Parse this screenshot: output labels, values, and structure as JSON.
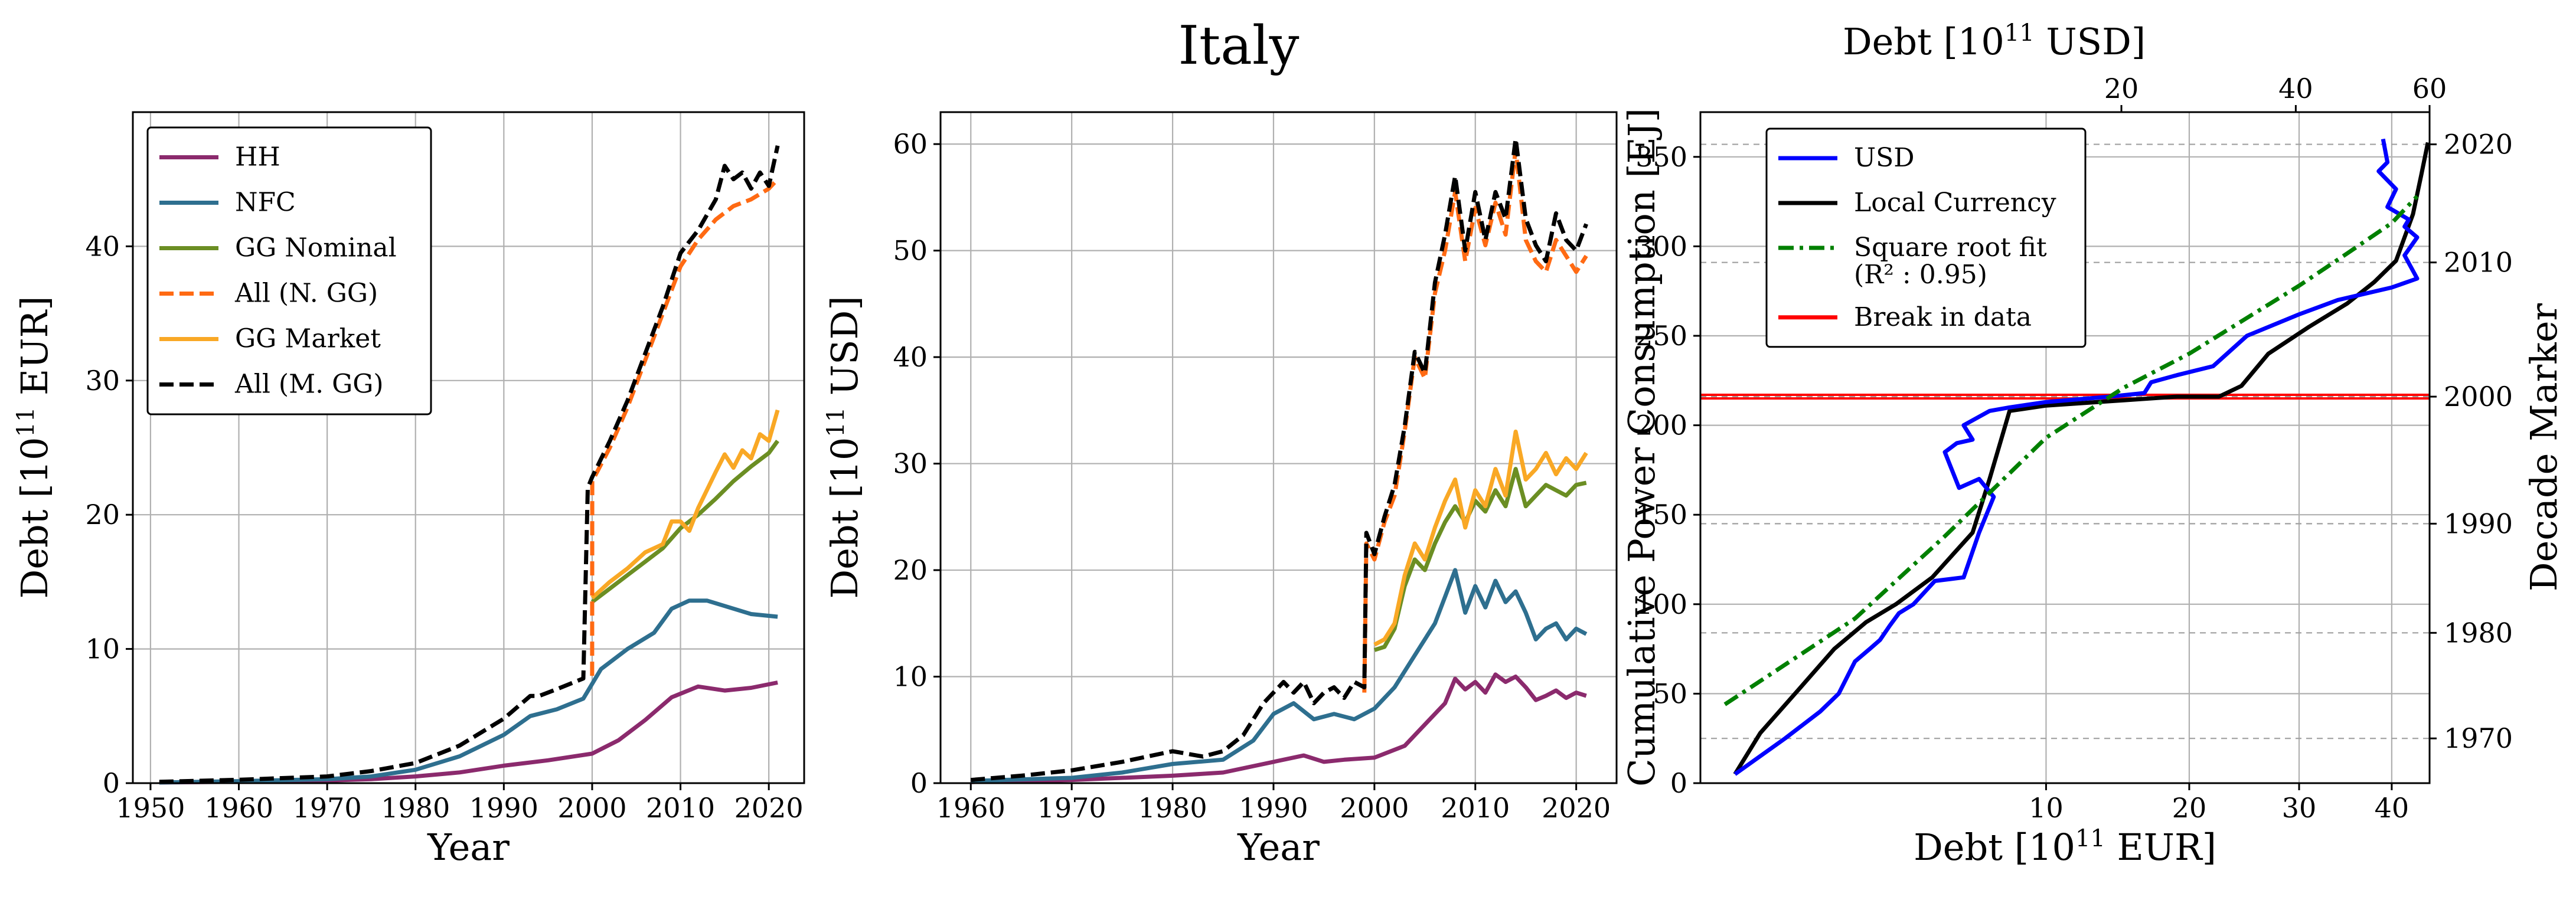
{
  "figure": {
    "suptitle": "Italy"
  },
  "colors": {
    "HH": "#8b2a6d",
    "NFC": "#2e6f8f",
    "GG_nominal": "#6b8e23",
    "all_n_gg": "#ff6a13",
    "GG_market": "#f9a825",
    "all_m_gg": "#000000",
    "usd": "#0000ff",
    "local": "#000000",
    "fit": "#008000",
    "break": "#ff0000"
  },
  "chart_data": [
    {
      "id": "left",
      "type": "line",
      "xlabel": "Year",
      "ylabel": "Debt [10",
      "ylabel_sup": "11",
      "ylabel_tail": " EUR]",
      "xlim": [
        1948,
        2024
      ],
      "ylim": [
        0,
        50
      ],
      "xticks": [
        1950,
        1960,
        1970,
        1980,
        1990,
        2000,
        2010,
        2020
      ],
      "yticks": [
        0,
        10,
        20,
        30,
        40
      ],
      "legend_position": "top-left",
      "legend": [
        {
          "label": "HH",
          "key": "HH",
          "dash": "solid"
        },
        {
          "label": "NFC",
          "key": "NFC",
          "dash": "solid"
        },
        {
          "label": "GG Nominal",
          "key": "GG_nominal",
          "dash": "solid"
        },
        {
          "label": "All (N. GG)",
          "key": "all_n_gg",
          "dash": "dashed"
        },
        {
          "label": "GG Market",
          "key": "GG_market",
          "dash": "solid"
        },
        {
          "label": "All (M. GG)",
          "key": "all_m_gg",
          "dash": "dashed"
        }
      ],
      "series": [
        {
          "name": "HH",
          "key": "HH",
          "dash": "solid",
          "x": [
            1951,
            1960,
            1970,
            1975,
            1980,
            1985,
            1990,
            1995,
            2000,
            2003,
            2006,
            2009,
            2012,
            2015,
            2018,
            2021
          ],
          "y": [
            0.05,
            0.1,
            0.2,
            0.3,
            0.5,
            0.8,
            1.3,
            1.7,
            2.2,
            3.2,
            4.7,
            6.4,
            7.2,
            6.9,
            7.1,
            7.5
          ]
        },
        {
          "name": "NFC",
          "key": "NFC",
          "dash": "solid",
          "x": [
            1951,
            1960,
            1970,
            1975,
            1980,
            1985,
            1990,
            1993,
            1996,
            1999,
            2001,
            2004,
            2007,
            2009,
            2011,
            2013,
            2015,
            2018,
            2021
          ],
          "y": [
            0.05,
            0.15,
            0.3,
            0.5,
            1.0,
            2.0,
            3.6,
            5.0,
            5.5,
            6.3,
            8.5,
            10.0,
            11.2,
            13.0,
            13.6,
            13.6,
            13.2,
            12.6,
            12.4
          ]
        },
        {
          "name": "GG Nominal",
          "key": "GG_nominal",
          "dash": "solid",
          "x": [
            2000,
            2002,
            2004,
            2006,
            2008,
            2010,
            2012,
            2014,
            2016,
            2018,
            2020,
            2021
          ],
          "y": [
            13.5,
            14.5,
            15.5,
            16.5,
            17.5,
            19.0,
            20.0,
            21.2,
            22.5,
            23.6,
            24.6,
            25.5
          ]
        },
        {
          "name": "GG Market",
          "key": "GG_market",
          "dash": "solid",
          "x": [
            2000,
            2002,
            2004,
            2006,
            2008,
            2009,
            2010,
            2011,
            2012,
            2014,
            2015,
            2016,
            2017,
            2018,
            2019,
            2020,
            2021
          ],
          "y": [
            13.8,
            15.0,
            16.0,
            17.2,
            17.8,
            19.5,
            19.5,
            18.8,
            20.5,
            23.2,
            24.5,
            23.5,
            24.8,
            24.2,
            26.0,
            25.5,
            27.8
          ]
        },
        {
          "name": "All (N. GG)",
          "key": "all_n_gg",
          "dash": "dashed",
          "x": [
            2000,
            2000.01,
            2002,
            2004,
            2006,
            2008,
            2010,
            2012,
            2014,
            2016,
            2018,
            2020,
            2021
          ],
          "y": [
            8.0,
            22.5,
            25.0,
            28.0,
            31.5,
            35.0,
            38.5,
            40.5,
            42.0,
            43.0,
            43.5,
            44.3,
            45.0
          ]
        },
        {
          "name": "All (M. GG)",
          "key": "all_m_gg",
          "dash": "dashed",
          "x": [
            1951,
            1960,
            1970,
            1975,
            1980,
            1985,
            1990,
            1993,
            1994,
            1996,
            1999,
            1999.5,
            2000,
            2002,
            2004,
            2006,
            2008,
            2010,
            2012,
            2014,
            2015,
            2016,
            2017,
            2018,
            2019,
            2020,
            2021
          ],
          "y": [
            0.1,
            0.25,
            0.5,
            0.9,
            1.5,
            2.8,
            4.8,
            6.5,
            6.5,
            7.0,
            7.8,
            22.0,
            22.8,
            25.5,
            28.5,
            32.0,
            35.5,
            39.5,
            41.2,
            43.5,
            46.0,
            45.0,
            45.5,
            44.3,
            45.5,
            44.5,
            47.5
          ]
        }
      ]
    },
    {
      "id": "middle",
      "type": "line",
      "xlabel": "Year",
      "ylabel": "Debt [10",
      "ylabel_sup": "11",
      "ylabel_tail": " USD]",
      "xlim": [
        1957,
        2024
      ],
      "ylim": [
        0,
        63
      ],
      "xticks": [
        1960,
        1970,
        1980,
        1990,
        2000,
        2010,
        2020
      ],
      "yticks": [
        0,
        10,
        20,
        30,
        40,
        50,
        60
      ],
      "series": [
        {
          "name": "HH",
          "key": "HH",
          "dash": "solid",
          "x": [
            1960,
            1970,
            1980,
            1985,
            1990,
            1993,
            1995,
            1997,
            2000,
            2003,
            2005,
            2007,
            2008,
            2009,
            2010,
            2011,
            2012,
            2013,
            2014,
            2015,
            2016,
            2017,
            2018,
            2019,
            2020,
            2021
          ],
          "y": [
            0.1,
            0.3,
            0.7,
            1.0,
            2.0,
            2.6,
            2.0,
            2.2,
            2.4,
            3.5,
            5.5,
            7.5,
            9.8,
            8.8,
            9.5,
            8.5,
            10.2,
            9.5,
            10.0,
            9.0,
            7.8,
            8.2,
            8.7,
            8.0,
            8.5,
            8.2
          ]
        },
        {
          "name": "NFC",
          "key": "NFC",
          "dash": "solid",
          "x": [
            1960,
            1970,
            1975,
            1980,
            1985,
            1988,
            1990,
            1992,
            1994,
            1996,
            1998,
            2000,
            2002,
            2004,
            2006,
            2007,
            2008,
            2009,
            2010,
            2011,
            2012,
            2013,
            2014,
            2015,
            2016,
            2017,
            2018,
            2019,
            2020,
            2021
          ],
          "y": [
            0.2,
            0.5,
            1.0,
            1.8,
            2.2,
            4.0,
            6.5,
            7.5,
            6.0,
            6.5,
            6.0,
            7.0,
            9.0,
            12.0,
            15.0,
            17.5,
            20.0,
            16.0,
            18.5,
            16.5,
            19.0,
            17.0,
            18.0,
            16.0,
            13.5,
            14.5,
            15.0,
            13.5,
            14.5,
            14.0
          ]
        },
        {
          "name": "GG Nominal",
          "key": "GG_nominal",
          "dash": "solid",
          "x": [
            2000,
            2001,
            2002,
            2003,
            2004,
            2005,
            2006,
            2007,
            2008,
            2009,
            2010,
            2011,
            2012,
            2013,
            2014,
            2015,
            2016,
            2017,
            2018,
            2019,
            2020,
            2021
          ],
          "y": [
            12.5,
            12.8,
            14.5,
            18.5,
            21.0,
            20.0,
            22.5,
            24.5,
            26.0,
            24.5,
            26.5,
            25.5,
            27.5,
            26.0,
            29.5,
            26.0,
            27.0,
            28.0,
            27.5,
            27.0,
            28.0,
            28.2
          ]
        },
        {
          "name": "GG Market",
          "key": "GG_market",
          "dash": "solid",
          "x": [
            2000,
            2001,
            2002,
            2003,
            2004,
            2005,
            2006,
            2007,
            2008,
            2009,
            2010,
            2011,
            2012,
            2013,
            2014,
            2015,
            2016,
            2017,
            2018,
            2019,
            2020,
            2021
          ],
          "y": [
            13.0,
            13.5,
            15.0,
            19.5,
            22.5,
            21.0,
            24.0,
            26.5,
            28.5,
            24.0,
            27.5,
            26.0,
            29.5,
            27.0,
            33.0,
            28.5,
            29.5,
            31.0,
            29.0,
            30.5,
            29.5,
            31.0
          ]
        },
        {
          "name": "All (N. GG)",
          "key": "all_n_gg",
          "dash": "dashed",
          "x": [
            1999,
            1999.2,
            2000,
            2001,
            2002,
            2003,
            2004,
            2005,
            2006,
            2007,
            2008,
            2009,
            2010,
            2011,
            2012,
            2013,
            2014,
            2015,
            2016,
            2017,
            2018,
            2019,
            2020,
            2021
          ],
          "y": [
            8.5,
            22.5,
            21.0,
            24.5,
            27.0,
            33.0,
            40.0,
            38.0,
            46.0,
            50.0,
            55.5,
            49.0,
            54.0,
            50.5,
            54.5,
            51.5,
            59.5,
            51.0,
            49.0,
            48.0,
            51.0,
            49.5,
            48.0,
            49.5
          ]
        },
        {
          "name": "All (M. GG)",
          "key": "all_m_gg",
          "dash": "dashed",
          "x": [
            1960,
            1965,
            1970,
            1975,
            1980,
            1983,
            1985,
            1987,
            1989,
            1991,
            1992,
            1993,
            1994,
            1995,
            1996,
            1997,
            1998,
            1999,
            1999.2,
            2000,
            2001,
            2002,
            2003,
            2004,
            2005,
            2006,
            2007,
            2008,
            2009,
            2010,
            2011,
            2012,
            2013,
            2014,
            2015,
            2016,
            2017,
            2018,
            2019,
            2020,
            2021
          ],
          "y": [
            0.3,
            0.7,
            1.2,
            2.0,
            3.0,
            2.5,
            3.0,
            4.5,
            7.5,
            9.5,
            8.5,
            9.5,
            7.5,
            8.5,
            9.0,
            8.0,
            9.5,
            9.0,
            23.5,
            21.5,
            25.0,
            28.0,
            33.5,
            40.5,
            38.5,
            47.0,
            51.5,
            57.0,
            50.0,
            55.5,
            51.0,
            55.5,
            53.0,
            60.5,
            53.0,
            50.5,
            49.0,
            53.5,
            51.0,
            50.0,
            52.5
          ]
        }
      ]
    },
    {
      "id": "right",
      "type": "line",
      "xlabel": "Debt [10",
      "xlabel_sup": "11",
      "xlabel_tail": " EUR]",
      "top_xlabel": "Debt [10",
      "top_xlabel_sup": "11",
      "top_xlabel_tail": " USD]",
      "ylabel": "Cumulative Power Consumption [EJ]",
      "right_ylabel": "Decade Marker",
      "xscale": "sqrt",
      "xlim": [
        0.0,
        44.5
      ],
      "ylim": [
        0,
        375
      ],
      "xticks": [
        10,
        20,
        30,
        40
      ],
      "top_xlim": [
        0.0,
        60.0
      ],
      "top_xticks": [
        20,
        40,
        60
      ],
      "yticks": [
        0,
        50,
        100,
        150,
        200,
        250,
        300,
        350
      ],
      "decade_markers": [
        {
          "label": "1970",
          "y": 25
        },
        {
          "label": "1980",
          "y": 84
        },
        {
          "label": "1990",
          "y": 145
        },
        {
          "label": "2000",
          "y": 216
        },
        {
          "label": "2010",
          "y": 291
        },
        {
          "label": "2020",
          "y": 357
        }
      ],
      "break_y": [
        215,
        217
      ],
      "legend_position": "top-left",
      "legend": [
        {
          "label": "USD",
          "key": "usd",
          "dash": "solid"
        },
        {
          "label": "Local Currency",
          "key": "local",
          "dash": "solid"
        },
        {
          "label": "Square root fit",
          "label2": "(R² : 0.95)",
          "key": "fit",
          "dash": "dashdot"
        },
        {
          "label": "Break in data",
          "key": "break",
          "dash": "solid"
        }
      ],
      "series": [
        {
          "name": "Local Currency",
          "key": "local",
          "dash": "solid",
          "x": [
            0.1,
            0.3,
            0.8,
            1.5,
            2.3,
            3.2,
            4.5,
            6.2,
            7.0,
            8.0,
            10.0,
            15.0,
            19.0,
            22.5,
            24.5,
            27.0,
            31.0,
            35.0,
            38.0,
            40.5,
            41.5,
            42.5,
            43.5,
            44.3
          ],
          "y": [
            5,
            28,
            52,
            75,
            90,
            100,
            115,
            140,
            170,
            208,
            211,
            214,
            216,
            216,
            222,
            240,
            255,
            268,
            280,
            292,
            305,
            318,
            340,
            358
          ]
        },
        {
          "name": "USD",
          "key": "usd",
          "dash": "solid",
          "x": [
            0.1,
            0.6,
            1.2,
            1.6,
            2.0,
            2.4,
            2.7,
            3.0,
            3.3,
            3.8,
            4.6,
            5.8,
            6.5,
            7.2,
            6.5,
            5.6,
            5.0,
            5.5,
            6.2,
            5.8,
            7.0,
            8.0,
            10.0,
            14.0,
            16.5,
            17.0,
            19.0,
            22.0,
            25.0,
            30.0,
            34.0,
            40.0,
            43.0,
            41.5,
            43.0,
            41.5,
            42.0,
            39.5,
            40.5,
            38.5,
            39.5,
            39.0
          ],
          "y": [
            5,
            25,
            40,
            50,
            68,
            75,
            80,
            88,
            95,
            100,
            113,
            115,
            140,
            160,
            170,
            165,
            185,
            190,
            192,
            200,
            208,
            210,
            213,
            216,
            218,
            224,
            228,
            233,
            250,
            262,
            270,
            277,
            282,
            295,
            305,
            311,
            315,
            322,
            332,
            342,
            347,
            360
          ]
        },
        {
          "name": "Square root fit",
          "key": "fit",
          "dash": "dashdot",
          "x": [
            0.05,
            2.0,
            5.0,
            10.0,
            15.0,
            20.0,
            25.0,
            30.0,
            35.0,
            40.0,
            43.0
          ],
          "y": [
            44,
            92,
            138,
            193,
            221,
            240,
            260,
            278,
            296,
            313,
            328
          ]
        }
      ]
    }
  ]
}
